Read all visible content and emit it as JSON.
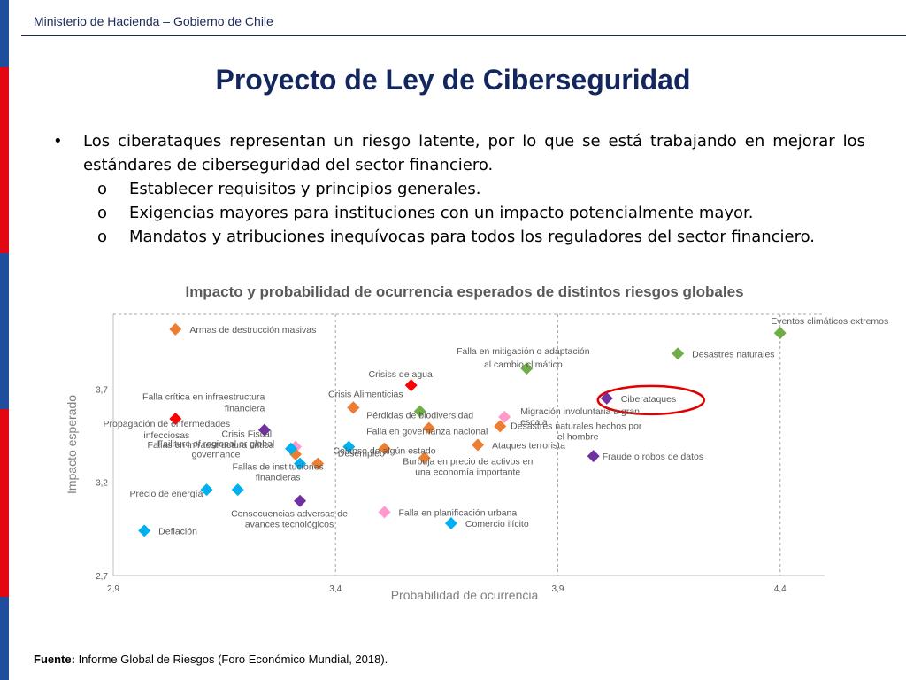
{
  "header": {
    "org": "Ministerio de Hacienda – Gobierno de Chile",
    "title": "Proyecto de Ley de Ciberseguridad"
  },
  "bullets": {
    "main": "Los ciberataques representan un riesgo latente, por lo que se está trabajando en mejorar los estándares de ciberseguridad del sector financiero.",
    "main_marker": "•",
    "sub_marker": "o",
    "subs": [
      "Establecer requisitos y principios generales.",
      "Exigencias mayores para instituciones con un impacto potencialmente mayor.",
      "Mandatos y atribuciones inequívocas para todos los reguladores del sector financiero."
    ]
  },
  "footer": {
    "label": "Fuente:",
    "text": " Informe Global de Riesgos (Foro Económico Mundial, 2018)."
  },
  "colors": {
    "navy": "#13275e",
    "green": "#70ad47",
    "orange": "#ed7d31",
    "red": "#ff0000",
    "purple": "#7030a0",
    "blue": "#00b0f0",
    "pink": "#ff99cc",
    "highlight": "#e00000"
  },
  "chart_data": {
    "type": "scatter",
    "title": "Impacto y probabilidad de ocurrencia esperados de distintos riesgos globales",
    "xlabel": "Probabilidad de ocurrencia",
    "ylabel": "Impacto esperado",
    "xlim": [
      2.9,
      4.5
    ],
    "ylim": [
      2.7,
      4.1
    ],
    "xticks": [
      2.9,
      3.4,
      3.9,
      4.4
    ],
    "xtick_labels": [
      "2,9",
      "3,4",
      "3,9",
      "4,4"
    ],
    "yticks": [
      2.7,
      3.2,
      3.7
    ],
    "ytick_labels": [
      "2,7",
      "3,2",
      "3,7"
    ],
    "grid": "vertical dashed at x ticks",
    "highlight": "Ciberataques",
    "points": [
      {
        "label": "Armas de destrucción masivas",
        "x": 3.04,
        "y": 4.02,
        "color": "orange"
      },
      {
        "label": "Eventos climáticos extremos",
        "x": 4.4,
        "y": 4.0,
        "color": "green"
      },
      {
        "label": "Desastres naturales",
        "x": 4.17,
        "y": 3.89,
        "color": "green"
      },
      {
        "label": "Falla en mitigación o adaptación al cambio climático",
        "x": 3.83,
        "y": 3.81,
        "color": "green"
      },
      {
        "label": "Crisiss de agua",
        "x": 3.57,
        "y": 3.72,
        "color": "red"
      },
      {
        "label": "Ciberataques",
        "x": 4.01,
        "y": 3.65,
        "color": "purple"
      },
      {
        "label": "Crisis Alimenticias",
        "x": 3.44,
        "y": 3.6,
        "color": "red"
      },
      {
        "label": "Falla crítica en infraestructura financiera",
        "x": 3.44,
        "y": 3.6,
        "color": "orange"
      },
      {
        "label": "Pérdidas de biodiversidad",
        "x": 3.59,
        "y": 3.58,
        "color": "green"
      },
      {
        "label": "Migración involuntaria a gran escala",
        "x": 3.78,
        "y": 3.55,
        "color": "pink"
      },
      {
        "label": "Propagación de enfermedades infecciosas",
        "x": 3.04,
        "y": 3.54,
        "color": "red"
      },
      {
        "label": "Desastres naturales hechos por el hombre",
        "x": 3.77,
        "y": 3.5,
        "color": "orange"
      },
      {
        "label": "Falla en governanza nacional",
        "x": 3.61,
        "y": 3.49,
        "color": "orange"
      },
      {
        "label": "Crisis Fiscal",
        "x": 3.24,
        "y": 3.48,
        "color": "purple"
      },
      {
        "label": "Ataques terrorista",
        "x": 3.72,
        "y": 3.4,
        "color": "orange"
      },
      {
        "label": "Fraude o robos de datos",
        "x": 3.98,
        "y": 3.34,
        "color": "purple"
      },
      {
        "label": "Desempleo",
        "x": 3.43,
        "y": 3.39,
        "color": "blue"
      },
      {
        "label": "Failiture of regional or global governance",
        "x": 3.31,
        "y": 3.39,
        "color": "pink"
      },
      {
        "label": "Colapso de algún estado",
        "x": 3.51,
        "y": 3.38,
        "color": "orange"
      },
      {
        "label": "Fallas en infraestructura critica",
        "x": 3.31,
        "y": 3.35,
        "color": "orange"
      },
      {
        "label": "Burbuja en precio de activos en una economía importante",
        "x": 3.6,
        "y": 3.33,
        "color": "orange"
      },
      {
        "label": "Fallas de instituciones financieras",
        "x": 3.36,
        "y": 3.3,
        "color": "orange"
      },
      {
        "label": "Fallas de instituciones financieras (blue)",
        "x": 3.3,
        "y": 3.38,
        "color": "blue"
      },
      {
        "label": "Precio de energía",
        "x": 3.11,
        "y": 3.16,
        "color": "blue"
      },
      {
        "label": "Precio de energía (2)",
        "x": 3.18,
        "y": 3.16,
        "color": "blue"
      },
      {
        "label": "Consecuencias adversas de avances tecnológicos",
        "x": 3.32,
        "y": 3.1,
        "color": "purple"
      },
      {
        "label": "Falla en planificación urbana",
        "x": 3.51,
        "y": 3.04,
        "color": "pink"
      },
      {
        "label": "Comercio ilícito",
        "x": 3.66,
        "y": 2.98,
        "color": "blue"
      },
      {
        "label": "Deflación",
        "x": 2.97,
        "y": 2.94,
        "color": "blue"
      },
      {
        "label": "Crisis Fiscal (blue)",
        "x": 3.32,
        "y": 3.3,
        "color": "blue"
      }
    ],
    "labels": [
      {
        "text": "Armas de destrucción masivas",
        "at": "Armas de destrucción masivas"
      },
      {
        "text": "Eventos climáticos extremos",
        "at": "Eventos climáticos extremos"
      },
      {
        "text": "Desastres naturales",
        "at": "Desastres naturales"
      },
      {
        "text": "Falla en mitigación o adaptación",
        "at": "Falla en mitigación o adaptación al cambio climático"
      },
      {
        "text": "al cambio climático",
        "at": "Falla en mitigación o adaptación al cambio climático"
      },
      {
        "text": "Crisiss de agua",
        "at": "Crisiss de agua"
      },
      {
        "text": "Ciberataques",
        "at": "Ciberataques"
      },
      {
        "text": "Crisis Alimenticias",
        "at": "Crisis Alimenticias"
      },
      {
        "text": "Falla crítica en infraestructura",
        "at": "Falla crítica en infraestructura financiera"
      },
      {
        "text": "financiera",
        "at": "Falla crítica en infraestructura financiera"
      },
      {
        "text": "Pérdidas de biodiversidad",
        "at": "Pérdidas de biodiversidad"
      },
      {
        "text": "Migración involuntaria a gran",
        "at": "Migración involuntaria a gran escala"
      },
      {
        "text": "escala",
        "at": "Migración involuntaria a gran escala"
      },
      {
        "text": "Propagación de enfermedades",
        "at": "Propagación de enfermedades infecciosas"
      },
      {
        "text": "infecciosas",
        "at": "Propagación de enfermedades infecciosas"
      },
      {
        "text": "Desastres naturales hechos por",
        "at": "Desastres naturales hechos por el hombre"
      },
      {
        "text": "el hombre",
        "at": "Desastres naturales hechos por el hombre"
      },
      {
        "text": "Falla en governanza nacional",
        "at": "Falla en governanza nacional"
      },
      {
        "text": "Crisis Fiscal",
        "at": "Crisis Fiscal"
      },
      {
        "text": "Ataques terrorista",
        "at": "Ataques terrorista"
      },
      {
        "text": "Fraude o robos de datos",
        "at": "Fraude o robos de datos"
      },
      {
        "text": "Desempleo",
        "at": "Desempleo"
      },
      {
        "text": "Failiture of regional or global",
        "at": "Failiture of regional or global governance"
      },
      {
        "text": "governance",
        "at": "Failiture of regional or global governance"
      },
      {
        "text": "Colapso de algún estado",
        "at": "Colapso de algún estado"
      },
      {
        "text": "Fallas en infraestructura critica",
        "at": "Fallas en infraestructura critica"
      },
      {
        "text": "Burbuja en precio de activos en",
        "at": "Burbuja en precio de activos en una economía importante"
      },
      {
        "text": "una economía importante",
        "at": "Burbuja en precio de activos en una economía importante"
      },
      {
        "text": "Fallas de instituciones",
        "at": "Fallas de instituciones financieras"
      },
      {
        "text": "financieras",
        "at": "Fallas de instituciones financieras"
      },
      {
        "text": "Precio de energía",
        "at": "Precio de energía"
      },
      {
        "text": "Consecuencias adversas de",
        "at": "Consecuencias adversas de avances tecnológicos"
      },
      {
        "text": "avances tecnológicos",
        "at": "Consecuencias adversas de avances tecnológicos"
      },
      {
        "text": "Falla en planificación urbana",
        "at": "Falla en planificación urbana"
      },
      {
        "text": "Comercio ilícito",
        "at": "Comercio ilícito"
      },
      {
        "text": "Deflación",
        "at": "Deflación"
      }
    ]
  }
}
